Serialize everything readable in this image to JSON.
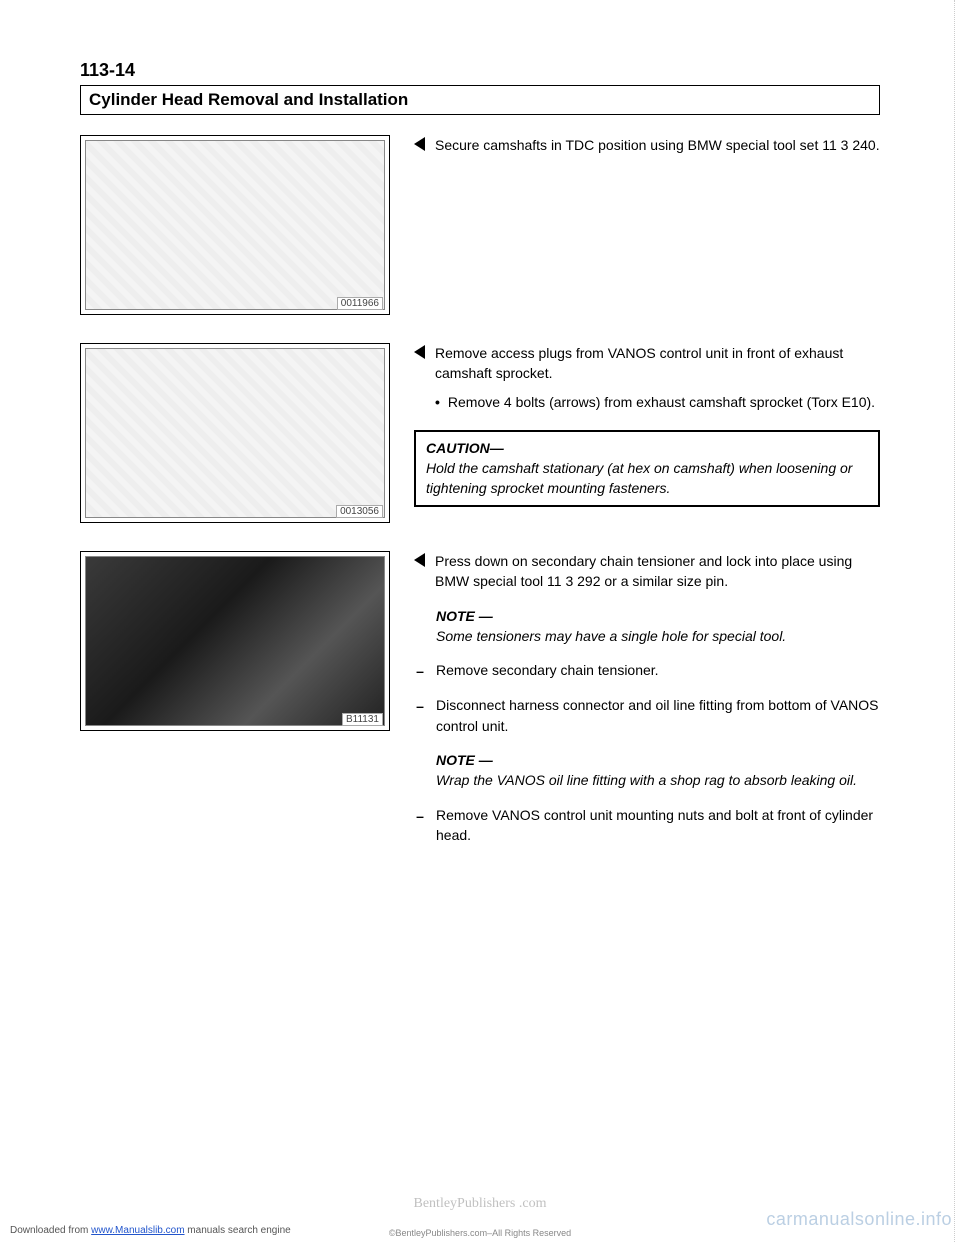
{
  "page_number": "113-14",
  "title": "Cylinder Head Removal and Installation",
  "sections": [
    {
      "figure_id": "0011966",
      "figure_type": "line",
      "step_text": "Secure camshafts in TDC position using BMW special tool set 11 3 240."
    },
    {
      "figure_id": "0013056",
      "figure_type": "line",
      "step_text": "Remove access plugs from VANOS control unit in front of exhaust camshaft sprocket.",
      "bullets": [
        "Remove 4 bolts (arrows) from exhaust camshaft sprocket (Torx E10)."
      ],
      "caution": {
        "title": "CAUTION—",
        "text": "Hold the camshaft stationary (at hex on camshaft) when loosening or tightening sprocket mounting fasteners."
      }
    },
    {
      "figure_id": "B11131",
      "figure_type": "photo",
      "step_text": "Press down on secondary chain tensioner and lock into place using BMW special tool 11 3 292 or a similar size pin.",
      "note1": {
        "title": "NOTE —",
        "text": "Some tensioners may have a single hole for special tool."
      },
      "dashes": [
        "Remove secondary chain tensioner.",
        "Disconnect harness connector and oil line fitting from bottom of VANOS control unit."
      ],
      "note2": {
        "title": "NOTE —",
        "text": "Wrap the VANOS oil line fitting with a shop rag to absorb leaking oil."
      },
      "dashes2": [
        "Remove VANOS control unit mounting nuts and bolt at front of cylinder head."
      ]
    }
  ],
  "watermarks": {
    "center": "BentleyPublishers\n.com",
    "right": "carmanualsonline.info"
  },
  "footer": {
    "left_prefix": "Downloaded from ",
    "left_link": "www.Manualslib.com",
    "left_suffix": " manuals search engine",
    "copyright": "©BentleyPublishers.com–All Rights Reserved"
  }
}
